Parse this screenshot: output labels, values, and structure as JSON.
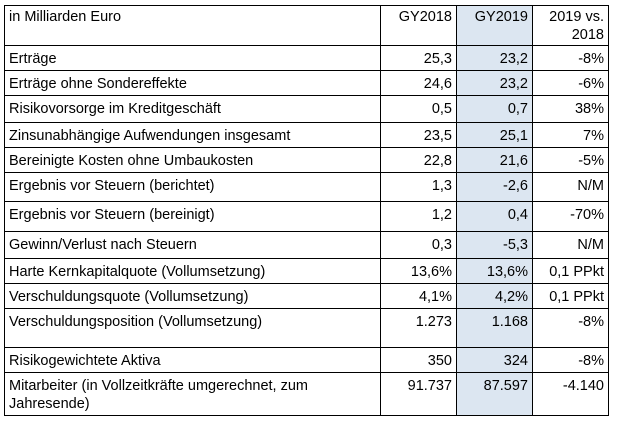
{
  "header": {
    "label": "in Milliarden Euro",
    "col_2018": "GY2018",
    "col_2019": "GY2019",
    "col_change": "2019 vs. 2018"
  },
  "rows": [
    {
      "label": "Erträge",
      "v2018": "25,3",
      "v2019": "23,2",
      "change": "-8%"
    },
    {
      "label": "Erträge ohne Sondereffekte",
      "v2018": "24,6",
      "v2019": "23,2",
      "change": "-6%"
    },
    {
      "label": "Risikovorsorge im Kreditgeschäft",
      "v2018": "0,5",
      "v2019": "0,7",
      "change": "38%"
    },
    {
      "label": "Zinsunabhängige Aufwendungen insgesamt",
      "v2018": "23,5",
      "v2019": "25,1",
      "change": "7%"
    },
    {
      "label": "Bereinigte Kosten ohne Umbaukosten",
      "v2018": "22,8",
      "v2019": "21,6",
      "change": "-5%"
    },
    {
      "label": "Ergebnis vor Steuern (berichtet)",
      "v2018": "1,3",
      "v2019": "-2,6",
      "change": "N/M"
    },
    {
      "label": "Ergebnis vor Steuern (bereinigt)",
      "v2018": "1,2",
      "v2019": "0,4",
      "change": "-70%"
    },
    {
      "label": "Gewinn/Verlust nach Steuern",
      "v2018": "0,3",
      "v2019": "-5,3",
      "change": "N/M"
    },
    {
      "label": "Harte Kernkapitalquote (Vollumsetzung)",
      "v2018": "13,6%",
      "v2019": "13,6%",
      "change": "0,1 PPkt"
    },
    {
      "label": "Verschuldungsquote (Vollumsetzung)",
      "v2018": "4,1%",
      "v2019": "4,2%",
      "change": "0,1 PPkt"
    },
    {
      "label": "Verschuldungsposition (Vollumsetzung)",
      "v2018": "1.273",
      "v2019": "1.168",
      "change": "-8%"
    },
    {
      "label": "Risikogewichtete Aktiva",
      "v2018": "350",
      "v2019": "324",
      "change": "-8%"
    },
    {
      "label": "Mitarbeiter (in Vollzeitkräfte umgerechnet, zum Jahresende)",
      "v2018": "91.737",
      "v2019": "87.597",
      "change": "-4.140"
    }
  ],
  "colors": {
    "highlight_column": "#dce6f1",
    "border": "#000000"
  }
}
